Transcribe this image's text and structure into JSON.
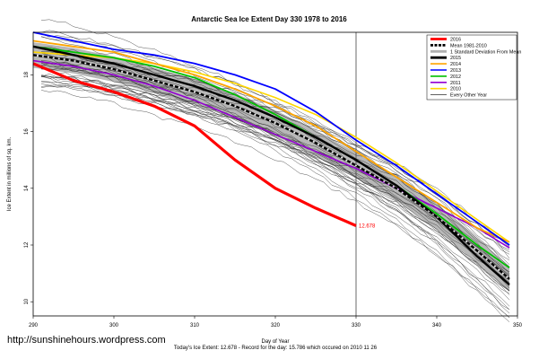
{
  "chart_data": {
    "type": "line",
    "title": "Antarctic Sea Ice Extent Day 330 1978 to 2016",
    "xlabel": "Day of Year",
    "ylabel": "Ice Extent in millions of sq. km.",
    "xlim": [
      290,
      350
    ],
    "ylim": [
      9.5,
      19.5
    ],
    "xticks": [
      "290",
      "300",
      "310",
      "320",
      "330",
      "340",
      "350"
    ],
    "yticks": [
      "10",
      "12",
      "14",
      "16",
      "18"
    ],
    "vline_x": 330,
    "grid": false,
    "legend_position": "top-right",
    "current_value_label": "12.678",
    "footer": "Today's Ice Extent: 12.678  -  Record for the day: 15.786 which occured on 2010 11 26",
    "series": [
      {
        "name": "2016",
        "color": "#ff0000",
        "x": [
          290,
          295,
          300,
          305,
          310,
          315,
          320,
          325,
          330
        ],
        "y": [
          18.4,
          17.8,
          17.4,
          16.9,
          16.2,
          15.0,
          14.0,
          13.3,
          12.68
        ]
      },
      {
        "name": "Mean 1981-2010",
        "color": "#000000",
        "x": [
          290,
          295,
          300,
          305,
          310,
          315,
          320,
          325,
          330,
          335,
          340,
          345,
          349
        ],
        "y": [
          18.7,
          18.5,
          18.2,
          17.8,
          17.4,
          16.9,
          16.3,
          15.6,
          14.8,
          14.0,
          13.0,
          11.8,
          10.8
        ]
      },
      {
        "name": "2015",
        "color": "#000000",
        "x": [
          290,
          295,
          300,
          305,
          310,
          315,
          320,
          325,
          330,
          335,
          340,
          345,
          349
        ],
        "y": [
          19.0,
          18.7,
          18.4,
          18.0,
          17.6,
          17.1,
          16.5,
          15.8,
          15.0,
          14.1,
          13.0,
          11.6,
          10.6
        ]
      },
      {
        "name": "2014",
        "color": "#ffa500",
        "x": [
          290,
          295,
          300,
          305,
          310,
          315,
          320,
          325,
          330,
          335,
          340,
          345,
          349
        ],
        "y": [
          19.2,
          19.0,
          18.8,
          18.4,
          18.0,
          17.5,
          16.9,
          16.2,
          15.3,
          14.4,
          13.5,
          12.6,
          12.1
        ]
      },
      {
        "name": "2013",
        "color": "#0000ff",
        "x": [
          290,
          295,
          300,
          305,
          310,
          315,
          320,
          325,
          330,
          335,
          340,
          345,
          349
        ],
        "y": [
          19.5,
          19.2,
          18.9,
          18.7,
          18.4,
          18.0,
          17.5,
          16.7,
          15.7,
          14.8,
          13.8,
          12.8,
          12.0
        ]
      },
      {
        "name": "2012",
        "color": "#00c000",
        "x": [
          290,
          295,
          300,
          305,
          310,
          315,
          320,
          325,
          330,
          335,
          340,
          345,
          349
        ],
        "y": [
          19.0,
          18.8,
          18.6,
          18.3,
          17.9,
          17.3,
          16.6,
          15.8,
          15.0,
          14.1,
          13.1,
          12.0,
          11.2
        ]
      },
      {
        "name": "2011",
        "color": "#9400d3",
        "x": [
          290,
          295,
          300,
          305,
          310,
          315,
          320,
          325,
          330,
          335,
          340,
          345,
          349
        ],
        "y": [
          18.5,
          18.3,
          18.0,
          17.6,
          17.1,
          16.5,
          15.9,
          15.3,
          14.7,
          14.0,
          13.3,
          12.6,
          11.9
        ]
      },
      {
        "name": "2010",
        "color": "#ffd700",
        "x": [
          290,
          295,
          300,
          305,
          310,
          315,
          320,
          325,
          330,
          335,
          340,
          345,
          349
        ],
        "y": [
          18.8,
          18.7,
          18.6,
          18.4,
          18.1,
          17.7,
          17.2,
          16.6,
          15.8,
          14.9,
          13.9,
          12.9,
          12.1
        ]
      }
    ],
    "legend_entries": [
      {
        "label": "2016",
        "color": "#ff0000",
        "style": "solid-thick"
      },
      {
        "label": "Mean 1981-2010",
        "color": "#000000",
        "style": "dashed-thick"
      },
      {
        "label": "1 Standard Deviation From Mean",
        "color": "#b0b0b0",
        "style": "solid-thick"
      },
      {
        "label": "2015",
        "color": "#000000",
        "style": "solid-thick"
      },
      {
        "label": "2014",
        "color": "#ffa500",
        "style": "solid"
      },
      {
        "label": "2013",
        "color": "#0000ff",
        "style": "solid"
      },
      {
        "label": "2012",
        "color": "#00c000",
        "style": "solid"
      },
      {
        "label": "2011",
        "color": "#9400d3",
        "style": "solid"
      },
      {
        "label": "2010",
        "color": "#ffd700",
        "style": "solid"
      },
      {
        "label": "Every Other Year",
        "color": "#000000",
        "style": "thin"
      }
    ],
    "background_years": {
      "count": 34,
      "color": "#222222"
    }
  },
  "watermark": "http://sunshinehours.wordpress.com"
}
